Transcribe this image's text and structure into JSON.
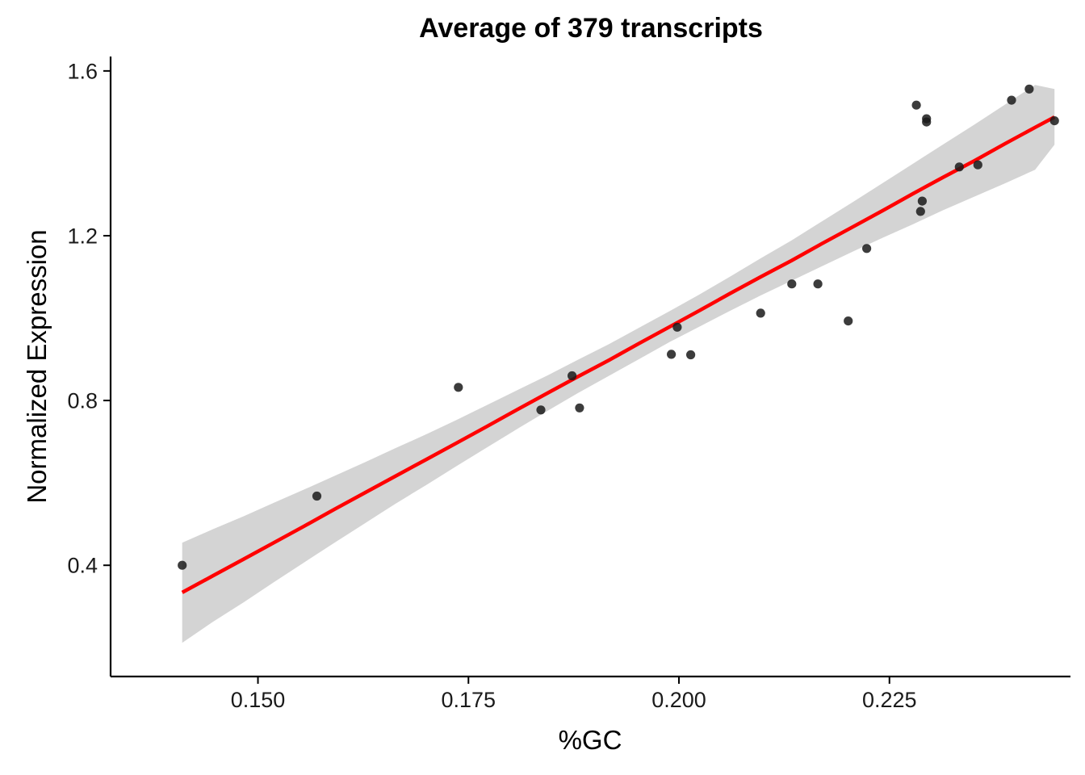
{
  "chart_data": {
    "type": "scatter",
    "title": "Average of 379 transcripts",
    "xlabel": "%GC",
    "ylabel": "Normalized Expression",
    "xlim": [
      0.1325,
      0.2465
    ],
    "ylim": [
      0.13,
      1.635
    ],
    "x_ticks": [
      0.15,
      0.175,
      0.2,
      0.225
    ],
    "x_tick_labels": [
      "0.150",
      "0.175",
      "0.200",
      "0.225"
    ],
    "y_ticks": [
      0.4,
      0.8,
      1.2,
      1.6
    ],
    "y_tick_labels": [
      "0.4",
      "0.8",
      "1.2",
      "1.6"
    ],
    "grid": false,
    "legend": "none",
    "points": {
      "x": [
        0.141,
        0.157,
        0.1738,
        0.1836,
        0.1873,
        0.1882,
        0.1991,
        0.1998,
        0.2014,
        0.2097,
        0.2134,
        0.2165,
        0.2201,
        0.2223,
        0.2282,
        0.2287,
        0.2289,
        0.2294,
        0.2294,
        0.2333,
        0.2355,
        0.2395,
        0.2416,
        0.2446
      ],
      "y": [
        0.4,
        0.568,
        0.832,
        0.777,
        0.86,
        0.782,
        0.912,
        0.978,
        0.911,
        1.012,
        1.083,
        1.083,
        0.993,
        1.169,
        1.517,
        1.259,
        1.284,
        1.476,
        1.484,
        1.367,
        1.372,
        1.529,
        1.556,
        1.479
      ]
    },
    "fit": {
      "x": [
        0.141,
        0.1446,
        0.1483,
        0.1519,
        0.1555,
        0.1591,
        0.1627,
        0.1663,
        0.17,
        0.1736,
        0.1772,
        0.1808,
        0.1844,
        0.188,
        0.1917,
        0.1953,
        0.1989,
        0.2025,
        0.2061,
        0.2097,
        0.2134,
        0.217,
        0.2206,
        0.2242,
        0.2278,
        0.2314,
        0.2351,
        0.2387,
        0.2423,
        0.2446
      ],
      "y": [
        0.334,
        0.374,
        0.415,
        0.455,
        0.495,
        0.536,
        0.576,
        0.616,
        0.657,
        0.697,
        0.737,
        0.778,
        0.818,
        0.858,
        0.898,
        0.939,
        0.979,
        1.019,
        1.06,
        1.1,
        1.14,
        1.181,
        1.221,
        1.261,
        1.302,
        1.342,
        1.382,
        1.423,
        1.463,
        1.488
      ],
      "ci_lower": [
        0.212,
        0.262,
        0.31,
        0.359,
        0.407,
        0.455,
        0.502,
        0.549,
        0.595,
        0.641,
        0.686,
        0.731,
        0.775,
        0.818,
        0.86,
        0.901,
        0.942,
        0.98,
        1.018,
        1.055,
        1.091,
        1.126,
        1.161,
        1.195,
        1.228,
        1.262,
        1.295,
        1.327,
        1.36,
        1.421
      ],
      "ci_upper": [
        0.455,
        0.487,
        0.519,
        0.552,
        0.584,
        0.617,
        0.65,
        0.684,
        0.718,
        0.753,
        0.789,
        0.825,
        0.861,
        0.899,
        0.937,
        0.977,
        1.017,
        1.058,
        1.101,
        1.145,
        1.189,
        1.235,
        1.281,
        1.328,
        1.375,
        1.422,
        1.47,
        1.518,
        1.566,
        1.556
      ]
    },
    "colors": {
      "points": "#1a1a1a",
      "fit_line": "#ff0000",
      "ci_band": "#d4d4d4"
    }
  }
}
